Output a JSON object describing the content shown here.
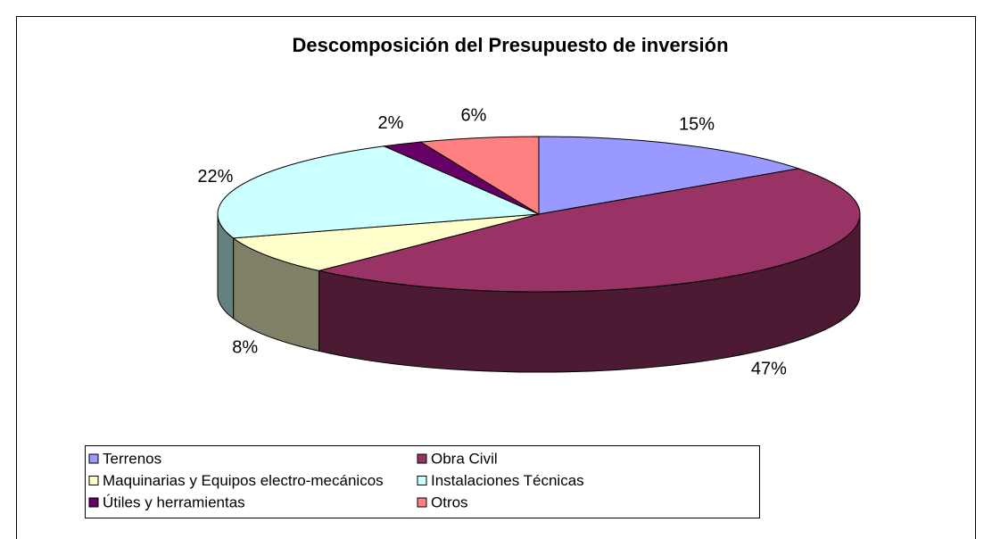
{
  "chart_data": {
    "type": "pie",
    "title": "Descomposición del Presupuesto de inversión",
    "categories": [
      "Terrenos",
      "Obra Civil",
      "Maquinarias y Equipos electro-mecánicos",
      "Instalaciones Técnicas",
      "Útiles y herramientas",
      "Otros"
    ],
    "values": [
      15,
      47,
      8,
      22,
      2,
      6
    ],
    "value_labels": [
      "15%",
      "47%",
      "8%",
      "22%",
      "2%",
      "6%"
    ],
    "colors": [
      "#9999ff",
      "#993366",
      "#ffffcc",
      "#ccffff",
      "#660066",
      "#ff8080"
    ],
    "legend": "bottom"
  }
}
